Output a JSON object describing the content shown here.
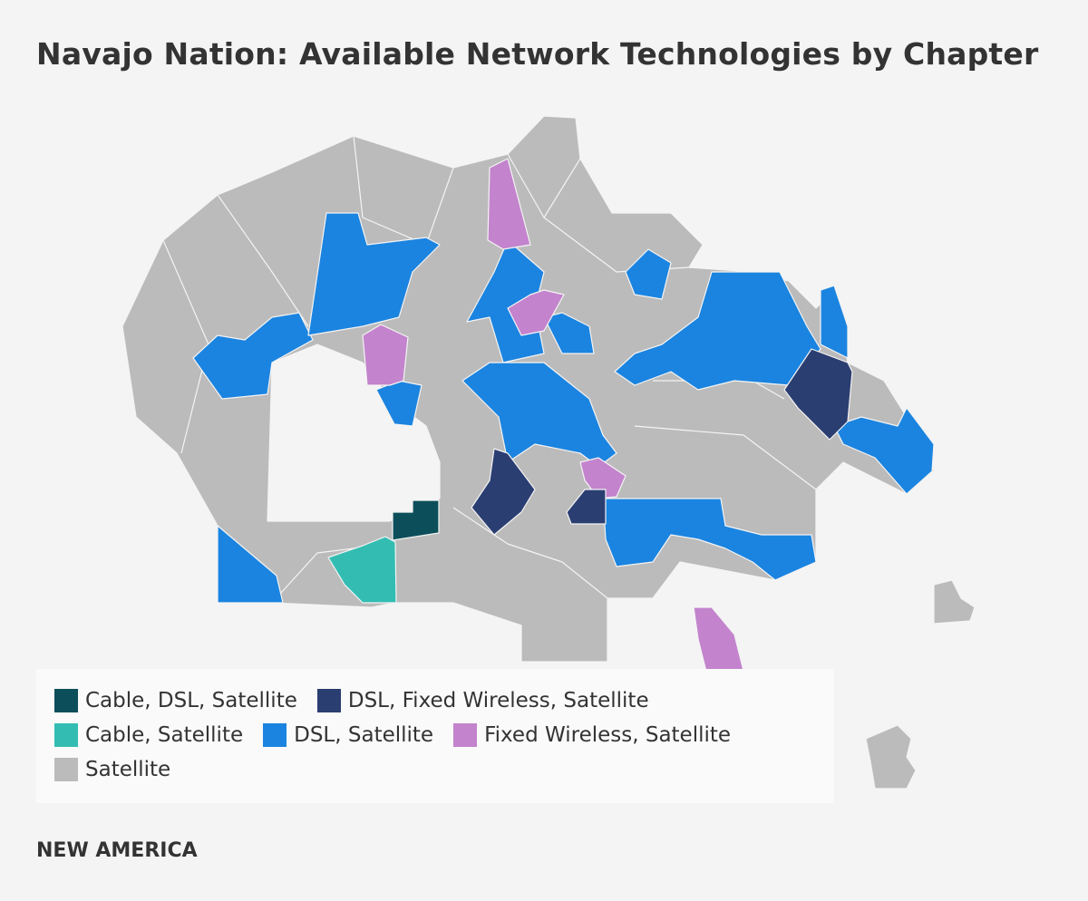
{
  "title": "Navajo Nation: Available Network Technologies by Chapter",
  "legend": {
    "items": [
      {
        "label": "Cable, DSL, Satellite",
        "color": "#0c4f5a"
      },
      {
        "label": "DSL, Fixed Wireless, Satellite",
        "color": "#2b3e72"
      },
      {
        "label": "Cable, Satellite",
        "color": "#33bdb2"
      },
      {
        "label": "DSL, Satellite",
        "color": "#1b84e0"
      },
      {
        "label": "Fixed Wireless, Satellite",
        "color": "#c383cd"
      },
      {
        "label": "Satellite",
        "color": "#bbbbbb"
      }
    ]
  },
  "footer": "NEW AMERICA"
}
